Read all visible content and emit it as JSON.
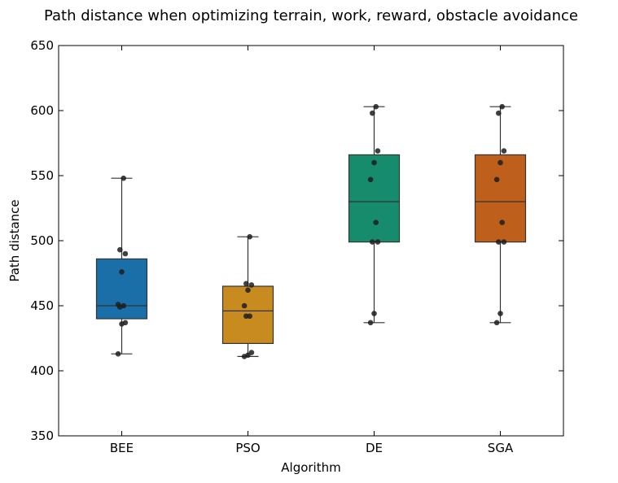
{
  "chart_data": {
    "type": "box",
    "title": "Path distance when optimizing terrain, work, reward, obstacle avoidance",
    "xlabel": "Algorithm",
    "ylabel": "Path distance",
    "ylim": [
      350,
      650
    ],
    "yticks": [
      350,
      400,
      450,
      500,
      550,
      600,
      650
    ],
    "categories": [
      "BEE",
      "PSO",
      "DE",
      "SGA"
    ],
    "colors": [
      "#1a6fa8",
      "#c78b20",
      "#168c6c",
      "#bf5f1c"
    ],
    "boxes": [
      {
        "name": "BEE",
        "whisker_low": 413,
        "q1": 440,
        "median": 450,
        "q3": 486,
        "whisker_high": 548
      },
      {
        "name": "PSO",
        "whisker_low": 411,
        "q1": 421,
        "median": 446,
        "q3": 465,
        "whisker_high": 503
      },
      {
        "name": "DE",
        "whisker_low": 437,
        "q1": 499,
        "median": 530,
        "q3": 566,
        "whisker_high": 603
      },
      {
        "name": "SGA",
        "whisker_low": 437,
        "q1": 499,
        "median": 530,
        "q3": 566,
        "whisker_high": 603
      }
    ],
    "points": [
      [
        413,
        436,
        437,
        449,
        450,
        451,
        476,
        490,
        493,
        548
      ],
      [
        411,
        412,
        414,
        442,
        442,
        450,
        462,
        466,
        467,
        503
      ],
      [
        437,
        444,
        499,
        499,
        514,
        547,
        560,
        569,
        598,
        603
      ],
      [
        437,
        444,
        499,
        499,
        514,
        547,
        560,
        569,
        598,
        603
      ]
    ]
  }
}
